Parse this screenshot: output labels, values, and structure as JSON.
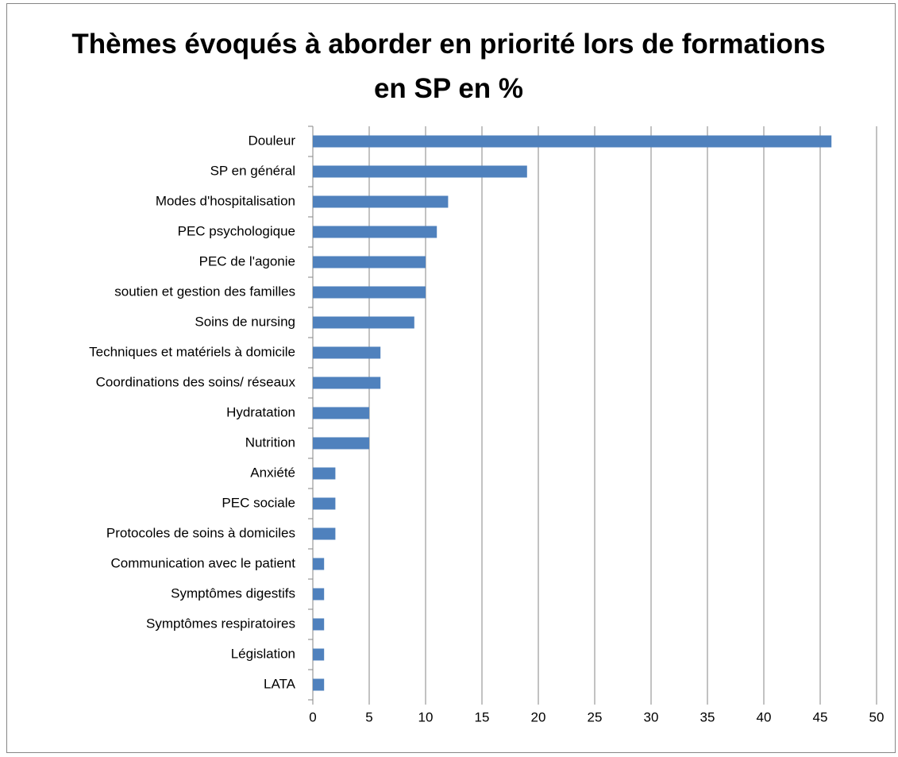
{
  "chart_data": {
    "type": "bar",
    "orientation": "horizontal",
    "title": "Thèmes évoqués à aborder en priorité lors de formations en SP en %",
    "categories": [
      "Douleur",
      "SP en général",
      "Modes d'hospitalisation",
      "PEC psychologique",
      "PEC de l'agonie",
      "soutien et gestion des familles",
      "Soins de nursing",
      "Techniques et matériels à domicile",
      "Coordinations des soins/ réseaux",
      "Hydratation",
      "Nutrition",
      "Anxiété",
      "PEC sociale",
      "Protocoles de soins à domiciles",
      "Communication avec le patient",
      "Symptômes digestifs",
      "Symptômes respiratoires",
      "Législation",
      "LATA"
    ],
    "values": [
      46,
      19,
      12,
      11,
      10,
      10,
      9,
      6,
      6,
      5,
      5,
      2,
      2,
      2,
      1,
      1,
      1,
      1,
      1
    ],
    "color": "#4f81bd",
    "xlim": [
      0,
      50
    ],
    "xticks": [
      0,
      5,
      10,
      15,
      20,
      25,
      30,
      35,
      40,
      45,
      50
    ],
    "grid": true
  }
}
